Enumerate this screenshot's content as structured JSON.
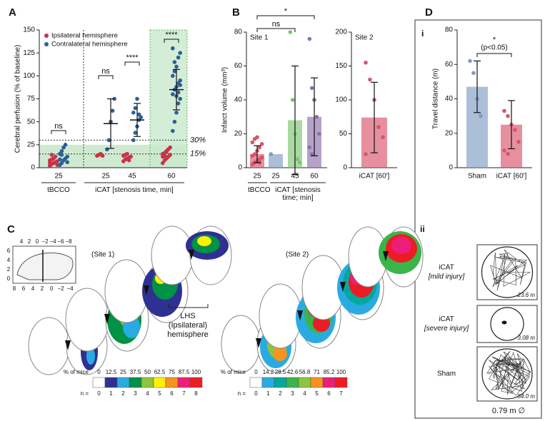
{
  "chart_data": [
    {
      "type": "dot",
      "panel": "A",
      "ylabel": "Cerebral perfusion (% of baseline)",
      "ylim": [
        0,
        150
      ],
      "yticks": [
        0,
        25,
        50,
        75,
        100,
        125,
        150
      ],
      "categories": [
        "25",
        "25",
        "45",
        "60"
      ],
      "groups": [
        "tBCCO",
        "iCAT [stenosis time, min]"
      ],
      "series": [
        {
          "name": "Ipsilateral hemisphere",
          "color": "#c8324a",
          "points": [
            [
              2,
              4,
              5,
              6,
              7,
              8,
              9,
              10,
              12,
              3,
              5,
              14
            ],
            [
              13,
              14,
              15,
              13
            ],
            [
              7,
              9,
              10,
              11,
              12,
              13,
              14,
              15,
              8
            ],
            [
              5,
              8,
              10,
              12,
              14,
              15,
              16,
              18,
              20,
              22,
              12,
              13,
              17
            ]
          ]
        },
        {
          "name": "Contralateral hemisphere",
          "color": "#2d5f96",
          "points": [
            [
              3,
              5,
              8,
              10,
              12,
              15,
              18,
              22,
              25,
              6,
              9,
              14
            ],
            [
              20,
              30,
              50,
              62,
              75
            ],
            [
              30,
              38,
              45,
              52,
              55,
              60,
              65,
              75,
              58
            ],
            [
              40,
              50,
              60,
              70,
              75,
              80,
              85,
              88,
              92,
              95,
              100,
              105,
              110,
              120,
              125,
              130,
              115,
              78,
              82,
              90
            ]
          ],
          "mean": [
            null,
            48,
            52,
            85
          ],
          "sd": [
            null,
            27,
            18,
            22
          ]
        }
      ],
      "reference_lines": [
        {
          "value": 30,
          "label": "30%"
        },
        {
          "value": 15,
          "label": "15%"
        }
      ],
      "brackets": [
        "ns",
        "ns",
        "****",
        "****"
      ]
    },
    {
      "type": "bar",
      "panel": "B",
      "title": "Site 1",
      "ylabel": "Infarct volume (mm³)",
      "ylim": [
        0,
        80
      ],
      "yticks": [
        0,
        20,
        40,
        60,
        80
      ],
      "categories": [
        "25",
        "25",
        "45",
        "60"
      ],
      "groups": [
        "tBCCO",
        "iCAT [stenosis time; min]"
      ],
      "values": [
        8,
        8,
        28,
        30
      ],
      "sd": [
        5,
        null,
        32,
        23
      ],
      "colors": [
        "#d9546b",
        "#7f9cc4",
        "#7cc46e",
        "#8f70aa"
      ],
      "points": [
        [
          2,
          3,
          4,
          5,
          6,
          7,
          8,
          10,
          12,
          14,
          15,
          17,
          18,
          3
        ],
        [
          8
        ],
        [
          80,
          40,
          20,
          5,
          3
        ],
        [
          76,
          47,
          40,
          30,
          20,
          12,
          8
        ]
      ],
      "brackets": [
        "ns",
        "*"
      ]
    },
    {
      "type": "bar",
      "title": "Site 2",
      "ylim": [
        0,
        200
      ],
      "yticks": [
        0,
        50,
        100,
        150,
        200
      ],
      "categories": [
        "iCAT [60′]"
      ],
      "values": [
        74
      ],
      "sd": [
        52
      ],
      "colors": [
        "#d9546b"
      ],
      "points": [
        [
          155,
          130,
          100,
          60,
          45,
          20
        ]
      ]
    },
    {
      "type": "bar",
      "panel": "D",
      "subpanel": "i",
      "ylabel": "Travel distance (m)",
      "ylim": [
        0,
        80
      ],
      "yticks": [
        0,
        20,
        40,
        60,
        80
      ],
      "categories": [
        "Sham",
        "iCAT [60′]"
      ],
      "values": [
        47,
        25
      ],
      "sd": [
        15,
        14
      ],
      "colors": [
        "#7f9cc4",
        "#d9546b"
      ],
      "points": [
        [
          62,
          55,
          40,
          30
        ],
        [
          33,
          30,
          25,
          22,
          15,
          10,
          8
        ]
      ],
      "brackets": [
        "*"
      ],
      "annotation": "(p<0.05)"
    }
  ],
  "panel_c": {
    "letter": "C",
    "inset": {
      "top": [
        "4",
        "2",
        "0",
        "−2",
        "−4",
        "−6",
        "−8"
      ],
      "left": [
        "6",
        "4",
        "2",
        "0"
      ],
      "bottom": [
        "8",
        "6",
        "4",
        "2",
        "0",
        "−2",
        "−4"
      ]
    },
    "sites": [
      {
        "label": "(Site 1)",
        "scale_label": "% of mice",
        "percent": [
          "0",
          "12.5",
          "25",
          "37.5",
          "50",
          "62.5",
          "75",
          "87.5",
          "100"
        ],
        "n_label": "n =",
        "n": [
          0,
          1,
          2,
          3,
          4,
          5,
          6,
          7,
          8
        ],
        "colors": [
          "#ffffff",
          "#2e3192",
          "#29abe2",
          "#009245",
          "#8cc63f",
          "#fff200",
          "#f7931e",
          "#ed1e79",
          "#ed1c24"
        ]
      },
      {
        "label": "(Site 2)",
        "scale_label": "% of mice",
        "percent": [
          "0",
          "14.2",
          "28.5",
          "42.6",
          "56.8",
          "71",
          "85.2",
          "100"
        ],
        "n_label": "n =",
        "n": [
          0,
          1,
          2,
          3,
          4,
          5,
          6,
          7
        ],
        "colors": [
          "#ffffff",
          "#29abe2",
          "#00a99d",
          "#39b54a",
          "#8cc63f",
          "#f7931e",
          "#ed1e79",
          "#ed1c24"
        ]
      }
    ],
    "lhs": {
      "label": "LHS",
      "sub": [
        "(Ipsilateral)",
        "hemisphere"
      ]
    }
  },
  "panel_d_ii": {
    "label": "ii",
    "arenas": [
      {
        "group": "iCAT",
        "condition": "[mild injury]",
        "distance": "23.6 m"
      },
      {
        "group": "iCAT",
        "condition": "[severe injury]",
        "distance": "3.08 m"
      },
      {
        "group": "Sham",
        "distance": "54.0 m"
      }
    ],
    "diameter": "0.79 m ∅"
  }
}
